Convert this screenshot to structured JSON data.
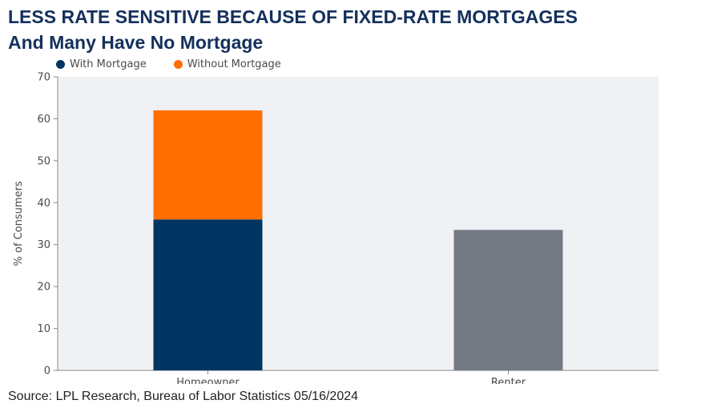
{
  "chart_data": {
    "type": "bar",
    "stacked": true,
    "title": "LESS RATE SENSITIVE BECAUSE OF FIXED-RATE MORTGAGES",
    "subtitle": "And Many Have No Mortgage",
    "ylabel": "% of Consumers",
    "xlabel": "",
    "ylim": [
      0,
      70
    ],
    "yticks": [
      0,
      10,
      20,
      30,
      40,
      50,
      60,
      70
    ],
    "categories": [
      "Homeowner",
      "Renter"
    ],
    "series": [
      {
        "name": "With Mortgage",
        "color": "#003562",
        "values": [
          36,
          null
        ]
      },
      {
        "name": "Without Mortgage",
        "color": "#ff6f00",
        "values": [
          26,
          null
        ]
      },
      {
        "name": "",
        "color": "#737a84",
        "values": [
          null,
          33.5
        ]
      }
    ],
    "legend_entries": [
      {
        "label": "With Mortgage",
        "color": "#003562"
      },
      {
        "label": "Without Mortgage",
        "color": "#ff6f00"
      }
    ],
    "legend_position": "top-left",
    "grid": false,
    "plot_background": "#f0f1f5",
    "source": "Source: LPL Research, Bureau of Labor Statistics 05/16/2024"
  }
}
